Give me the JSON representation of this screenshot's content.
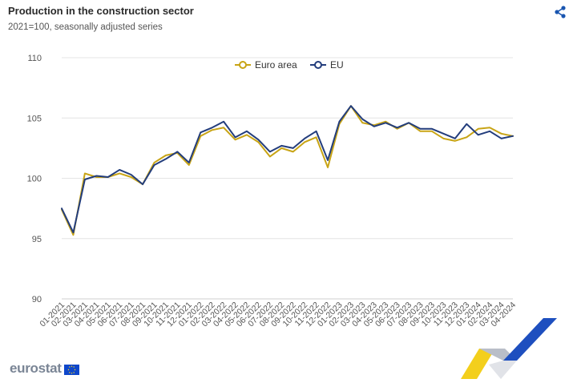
{
  "header": {
    "title": "Production in the construction sector",
    "subtitle": "2021=100, seasonally adjusted series"
  },
  "icons": {
    "share": "share-icon"
  },
  "branding": {
    "logo_text": "eurostat"
  },
  "colors": {
    "euro_area": "#c8a415",
    "eu": "#233d7c",
    "grid": "#e4e4e4",
    "axis_text": "#555555"
  },
  "chart_data": {
    "type": "line",
    "title": "Production in the construction sector",
    "subtitle": "2021=100, seasonally adjusted series",
    "xlabel": "",
    "ylabel": "",
    "ylim": [
      90,
      110
    ],
    "yticks": [
      90,
      95,
      100,
      105,
      110
    ],
    "grid": true,
    "legend_position": "top-center",
    "categories": [
      "01-2021",
      "02-2021",
      "03-2021",
      "04-2021",
      "05-2021",
      "06-2021",
      "07-2021",
      "08-2021",
      "09-2021",
      "10-2021",
      "11-2021",
      "12-2021",
      "01-2022",
      "02-2022",
      "03-2022",
      "04-2022",
      "05-2022",
      "06-2022",
      "07-2022",
      "08-2022",
      "09-2022",
      "10-2022",
      "11-2022",
      "12-2022",
      "01-2023",
      "02-2023",
      "03-2023",
      "04-2023",
      "05-2023",
      "06-2023",
      "07-2023",
      "08-2023",
      "09-2023",
      "10-2023",
      "11-2023",
      "12-2023",
      "01-2024",
      "02-2024",
      "03-2024",
      "04-2024"
    ],
    "series": [
      {
        "name": "Euro area",
        "color": "#c8a415",
        "values": [
          97.4,
          95.3,
          100.4,
          100.1,
          100.1,
          100.4,
          100.1,
          99.5,
          101.3,
          101.9,
          102.1,
          101.1,
          103.5,
          104.0,
          104.2,
          103.2,
          103.6,
          103.0,
          101.8,
          102.5,
          102.2,
          103.0,
          103.4,
          100.9,
          104.5,
          106.0,
          104.6,
          104.4,
          104.7,
          104.1,
          104.6,
          103.9,
          103.9,
          103.3,
          103.1,
          103.4,
          104.1,
          104.2,
          103.7,
          103.5
        ]
      },
      {
        "name": "EU",
        "color": "#233d7c",
        "values": [
          97.5,
          95.5,
          99.9,
          100.2,
          100.1,
          100.7,
          100.3,
          99.5,
          101.1,
          101.6,
          102.2,
          101.3,
          103.8,
          104.2,
          104.7,
          103.4,
          103.9,
          103.2,
          102.2,
          102.7,
          102.5,
          103.3,
          103.9,
          101.5,
          104.7,
          106.0,
          104.9,
          104.3,
          104.6,
          104.2,
          104.6,
          104.1,
          104.1,
          103.7,
          103.3,
          104.5,
          103.6,
          103.9,
          103.3,
          103.5
        ]
      }
    ]
  }
}
